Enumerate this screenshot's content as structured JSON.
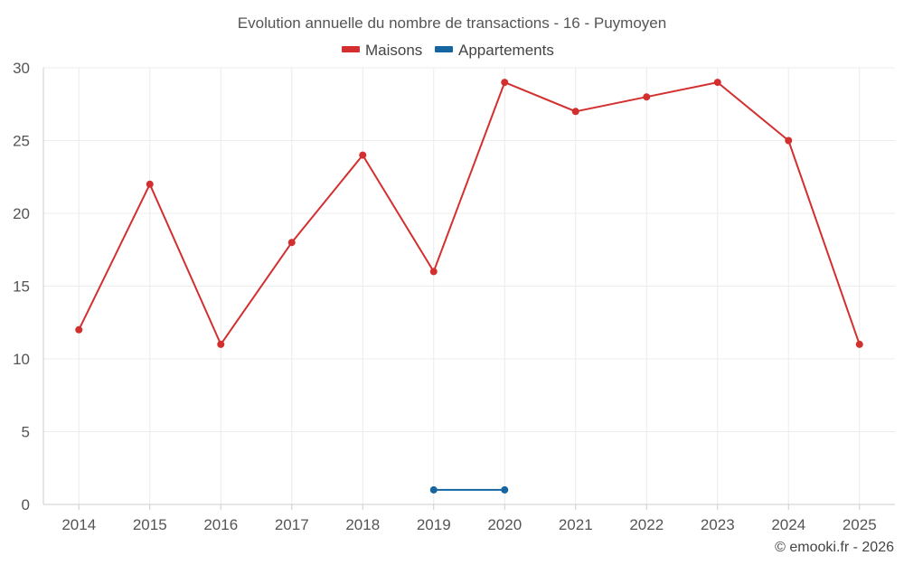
{
  "chart_data": {
    "type": "line",
    "title": "Evolution annuelle du nombre de transactions - 16 - Puymoyen",
    "categories": [
      "2014",
      "2015",
      "2016",
      "2017",
      "2018",
      "2019",
      "2020",
      "2021",
      "2022",
      "2023",
      "2024",
      "2025"
    ],
    "series": [
      {
        "name": "Maisons",
        "color": "#d32f2f",
        "values": [
          12,
          22,
          11,
          18,
          24,
          16,
          29,
          27,
          28,
          29,
          25,
          11
        ]
      },
      {
        "name": "Appartements",
        "color": "#1565a0",
        "values": [
          null,
          null,
          null,
          null,
          null,
          1,
          1,
          null,
          null,
          null,
          null,
          null
        ]
      }
    ],
    "y_ticks": [
      0,
      5,
      10,
      15,
      20,
      25,
      30
    ],
    "ylim": [
      0,
      30
    ],
    "xlabel": "",
    "ylabel": "",
    "grid": true,
    "legend_position": "top-center"
  },
  "credit": "© emooki.fr - 2026"
}
